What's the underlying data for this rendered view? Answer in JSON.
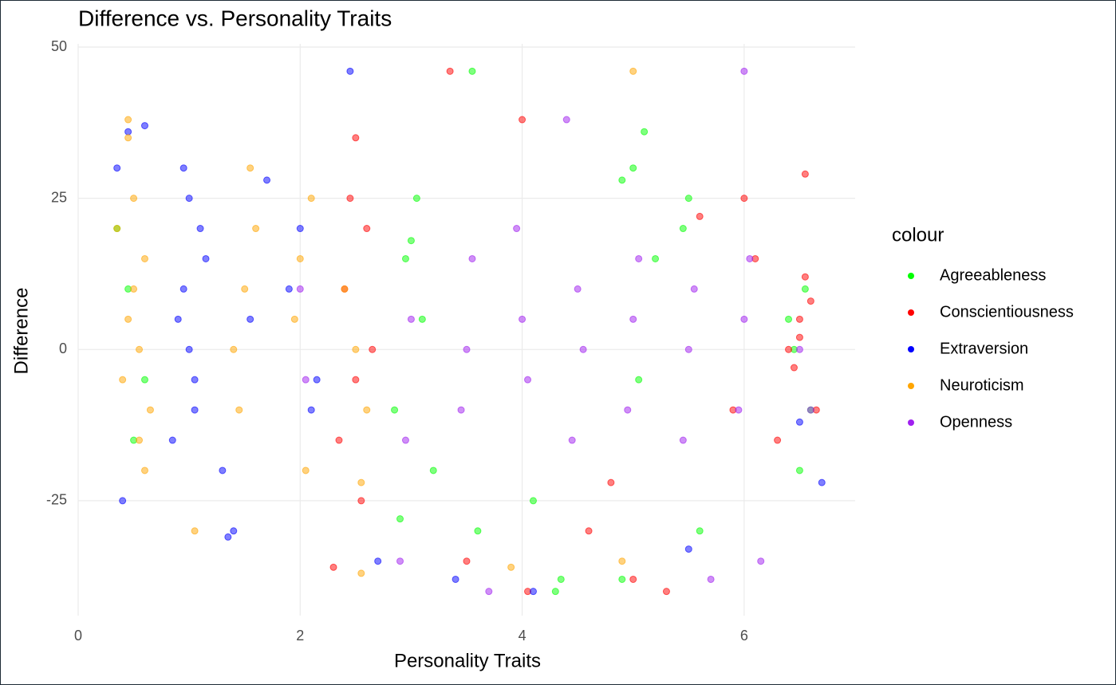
{
  "chart_data": {
    "type": "scatter",
    "title": "Difference vs. Personality Traits",
    "x_label": "Personality Traits",
    "y_label": "Difference",
    "legend_title": "colour",
    "legend": "right",
    "grid": true,
    "xlim": [
      0,
      7
    ],
    "xticks": [
      0,
      2,
      4,
      6
    ],
    "ylim": [
      -44,
      50
    ],
    "yticks": [
      -25,
      0,
      25,
      50
    ],
    "series": [
      {
        "name": "Agreeableness",
        "color": "#00ff00",
        "x": [
          0.45,
          0.6,
          0.35,
          2.95,
          3.1,
          2.85,
          3.05,
          3.2,
          4.3,
          4.1,
          5.0,
          5.1,
          4.9,
          5.2,
          5.5,
          5.6,
          6.45,
          6.6,
          6.55,
          6.4,
          3.55,
          4.9,
          2.9,
          3.6,
          5.05,
          6.5,
          0.5,
          3.0,
          4.35,
          5.45
        ],
        "values": [
          10,
          -5,
          20,
          15,
          5,
          -10,
          25,
          -20,
          -40,
          -25,
          30,
          36,
          -38,
          15,
          25,
          -30,
          0,
          -10,
          10,
          5,
          46,
          28,
          -28,
          -30,
          -5,
          -20,
          -15,
          18,
          -38,
          20
        ]
      },
      {
        "name": "Conscientiousness",
        "color": "#ff0000",
        "x": [
          2.4,
          2.5,
          2.6,
          2.35,
          2.65,
          2.45,
          2.55,
          6.5,
          6.6,
          6.45,
          6.55,
          6.4,
          6.65,
          6.5,
          6.0,
          5.9,
          6.1,
          3.35,
          4.0,
          4.05,
          5.0,
          5.3,
          3.5,
          4.6,
          2.3,
          6.55,
          5.6,
          2.5,
          6.3,
          4.8
        ],
        "values": [
          10,
          -5,
          20,
          -15,
          0,
          25,
          -25,
          5,
          8,
          -3,
          12,
          0,
          -10,
          2,
          25,
          -10,
          15,
          46,
          38,
          -40,
          -38,
          -40,
          -35,
          -30,
          -36,
          29,
          22,
          35,
          -15,
          -22
        ]
      },
      {
        "name": "Extraversion",
        "color": "#0000ff",
        "x": [
          0.95,
          1.0,
          1.05,
          1.1,
          0.9,
          0.85,
          1.15,
          1.0,
          1.05,
          0.95,
          1.4,
          1.55,
          1.7,
          1.3,
          2.0,
          2.1,
          1.9,
          2.15,
          0.4,
          0.45,
          0.6,
          2.45,
          2.7,
          3.4,
          6.5,
          6.7,
          5.5,
          0.35,
          1.35,
          4.1
        ],
        "values": [
          10,
          0,
          -10,
          20,
          5,
          -15,
          15,
          25,
          -5,
          30,
          -30,
          5,
          28,
          -20,
          20,
          -10,
          10,
          -5,
          -25,
          36,
          37,
          46,
          -35,
          -38,
          -12,
          -22,
          -33,
          30,
          -31,
          -40
        ]
      },
      {
        "name": "Neuroticism",
        "color": "#ffa500",
        "x": [
          0.45,
          0.5,
          0.55,
          0.6,
          0.4,
          0.35,
          0.65,
          0.5,
          0.55,
          0.45,
          1.5,
          1.4,
          1.6,
          1.45,
          1.55,
          2.0,
          1.95,
          2.05,
          2.1,
          2.5,
          2.4,
          2.6,
          2.55,
          1.05,
          0.6,
          0.45,
          5.0,
          4.9,
          3.9,
          2.55
        ],
        "values": [
          5,
          10,
          0,
          15,
          -5,
          20,
          -10,
          25,
          -15,
          35,
          10,
          0,
          20,
          -10,
          30,
          15,
          5,
          -20,
          25,
          0,
          10,
          -10,
          -37,
          -30,
          -20,
          38,
          46,
          -35,
          -36,
          -22
        ]
      },
      {
        "name": "Openness",
        "color": "#a020f0",
        "x": [
          2.0,
          2.05,
          3.0,
          2.95,
          3.5,
          3.55,
          3.45,
          4.0,
          4.05,
          3.95,
          4.5,
          4.55,
          4.45,
          5.0,
          5.05,
          4.95,
          5.5,
          5.55,
          5.45,
          6.0,
          6.05,
          5.95,
          6.5,
          6.6,
          6.0,
          3.7,
          4.4,
          5.7,
          6.15,
          2.9
        ],
        "values": [
          10,
          -5,
          5,
          -15,
          0,
          15,
          -10,
          5,
          -5,
          20,
          10,
          0,
          -15,
          5,
          15,
          -10,
          0,
          10,
          -15,
          5,
          15,
          -10,
          0,
          -10,
          46,
          -40,
          38,
          -38,
          -35,
          -35
        ]
      }
    ]
  }
}
